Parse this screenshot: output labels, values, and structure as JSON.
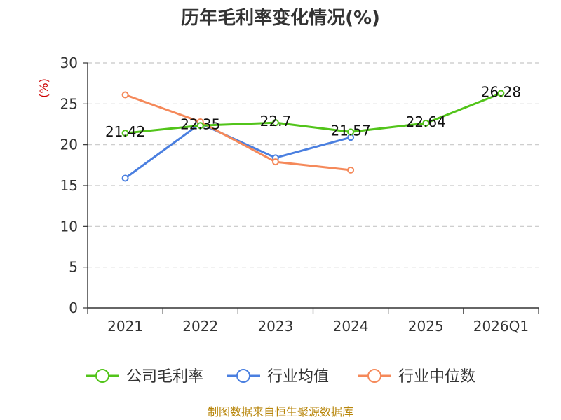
{
  "chart_data": {
    "type": "line",
    "title": "历年毛利率变化情况(%)",
    "ylabel": "(%)",
    "xlabel": "",
    "ylim": [
      0,
      30
    ],
    "yticks": [
      0,
      5,
      10,
      15,
      20,
      25,
      30
    ],
    "grid": true,
    "legend_position": "bottom",
    "categories": [
      "2021",
      "2022",
      "2023",
      "2024",
      "2025",
      "2026Q1"
    ],
    "series": [
      {
        "name": "公司毛利率",
        "color": "#52c41a",
        "values": [
          21.42,
          22.35,
          22.7,
          21.57,
          22.64,
          26.28
        ],
        "labels": [
          "21.42",
          "22.35",
          "22.7",
          "21.57",
          "22.64",
          "26.28"
        ]
      },
      {
        "name": "行业均值",
        "color": "#4a7fe0",
        "values": [
          15.9,
          22.6,
          18.4,
          20.9,
          null,
          null
        ]
      },
      {
        "name": "行业中位数",
        "color": "#f5895a",
        "values": [
          26.1,
          22.8,
          17.9,
          16.9,
          null,
          null
        ]
      }
    ],
    "source": "制图数据来自恒生聚源数据库",
    "source_color": "#b8860b",
    "ylabel_color": "#cc0000"
  }
}
